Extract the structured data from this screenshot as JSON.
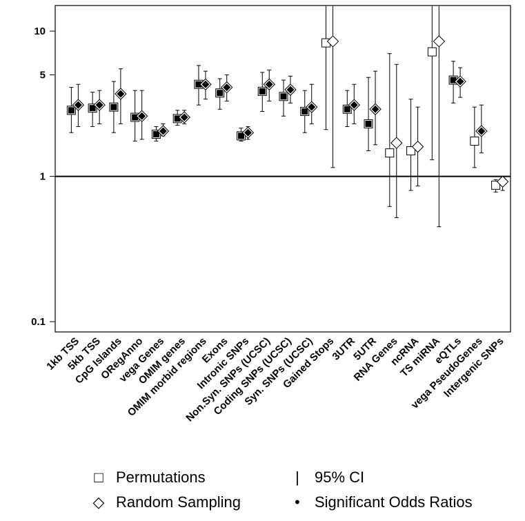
{
  "chart_data": {
    "type": "scatter",
    "log_y": true,
    "ylim": [
      0.085,
      15
    ],
    "yticks": [
      {
        "value": 0.1,
        "label": "0.1"
      },
      {
        "value": 1,
        "label": "1"
      },
      {
        "value": 5,
        "label": "5"
      },
      {
        "value": 10,
        "label": "10"
      }
    ],
    "reference_line": 1,
    "categories": [
      "1kb TSS",
      "5kb TSS",
      "CpG Islands",
      "ORegAnno",
      "vega Genes",
      "OMIM genes",
      "OMIM morbid regions",
      "Exons",
      "Intronic SNPs",
      "Non.Syn. SNPs (UCSC)",
      "Coding SNPs (UCSC)",
      "Syn. SNPs (UCSC)",
      "Gained Stops",
      "3UTR",
      "5UTR",
      "RNA Genes",
      "ncRNA",
      "TS miRNA",
      "eQTLs",
      "vega PseudoGenes",
      "Intergenic SNPs"
    ],
    "series": [
      {
        "name": "Permutations",
        "marker": "square",
        "values": [
          2.85,
          2.95,
          3.0,
          2.55,
          1.95,
          2.5,
          4.3,
          3.75,
          1.9,
          3.85,
          3.55,
          2.8,
          8.3,
          2.9,
          2.3,
          1.45,
          1.5,
          7.2,
          4.6,
          1.75,
          0.87
        ],
        "ci_low": [
          2.0,
          2.2,
          2.0,
          1.75,
          1.75,
          2.25,
          3.1,
          2.9,
          1.75,
          2.8,
          2.6,
          2.0,
          2.1,
          2.2,
          1.5,
          0.62,
          0.8,
          1.3,
          3.2,
          1.15,
          0.78
        ],
        "ci_high": [
          4.1,
          3.8,
          4.5,
          3.9,
          2.2,
          2.85,
          5.8,
          4.7,
          2.15,
          5.2,
          4.6,
          3.9,
          15.0,
          3.9,
          4.8,
          7.0,
          3.4,
          15.0,
          6.2,
          3.0,
          0.95
        ],
        "significant": [
          true,
          true,
          true,
          true,
          true,
          true,
          true,
          true,
          true,
          true,
          true,
          true,
          false,
          true,
          true,
          false,
          false,
          false,
          true,
          false,
          false
        ]
      },
      {
        "name": "Random Sampling",
        "marker": "diamond",
        "values": [
          3.1,
          3.1,
          3.7,
          2.6,
          2.05,
          2.55,
          4.3,
          4.1,
          2.0,
          4.3,
          3.95,
          3.0,
          8.5,
          3.1,
          2.9,
          1.7,
          1.6,
          8.5,
          4.5,
          2.05,
          0.92
        ],
        "ci_low": [
          2.2,
          2.3,
          2.3,
          1.8,
          1.9,
          2.3,
          3.4,
          3.3,
          1.8,
          3.3,
          3.2,
          2.3,
          1.15,
          2.3,
          1.65,
          0.52,
          0.86,
          0.45,
          3.5,
          1.45,
          0.8
        ],
        "ci_high": [
          4.3,
          3.9,
          5.5,
          3.9,
          2.3,
          2.85,
          5.3,
          5.0,
          2.2,
          5.4,
          4.9,
          4.3,
          15.0,
          4.3,
          5.3,
          5.9,
          3.0,
          15.0,
          5.6,
          3.1,
          0.98
        ],
        "significant": [
          true,
          true,
          true,
          true,
          true,
          true,
          true,
          true,
          true,
          true,
          true,
          true,
          false,
          true,
          true,
          false,
          false,
          false,
          true,
          true,
          false
        ]
      }
    ]
  },
  "legend": {
    "permutations_symbol": "□",
    "permutations": "Permutations",
    "random_symbol": "◇",
    "random": "Random Sampling",
    "ci_symbol": "|",
    "ci": "95% CI",
    "sig_symbol": "•",
    "sig": "Significant Odds Ratios"
  }
}
